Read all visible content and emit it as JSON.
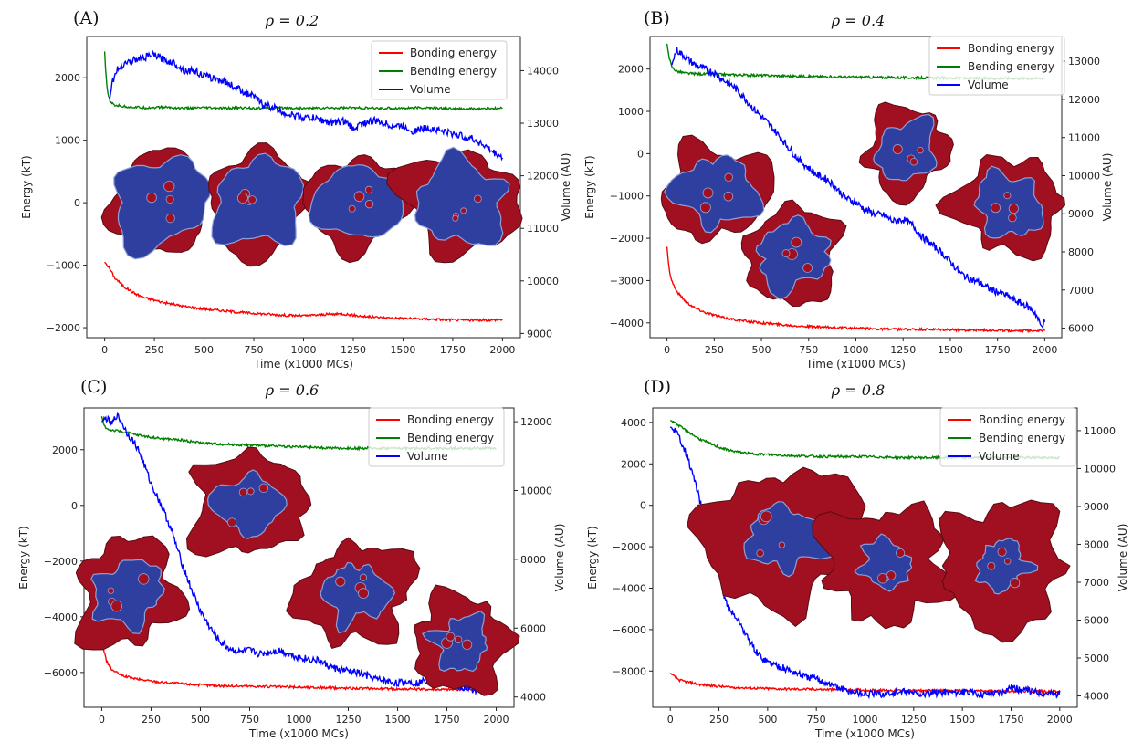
{
  "chart_data": [
    {
      "panel_label": "(A)",
      "title": "ρ = 0.2",
      "type": "line",
      "xlabel": "Time (x1000 MCs)",
      "ylabel": "Energy (kT)",
      "y2label": "Volume (AU)",
      "xlim": [
        -90,
        2090
      ],
      "xticks": [
        0,
        250,
        500,
        750,
        1000,
        1250,
        1500,
        1750,
        2000
      ],
      "ylim": [
        -2160,
        2660
      ],
      "yticks": [
        -2000,
        -1000,
        0,
        1000,
        2000
      ],
      "y2lim": [
        8920,
        14650
      ],
      "y2ticks": [
        9000,
        10000,
        11000,
        12000,
        13000,
        14000
      ],
      "legend": [
        "Bonding energy",
        "Bending energy",
        "Volume"
      ],
      "legend_position": "top-right",
      "series": [
        {
          "name": "Bonding energy",
          "axis": "left",
          "color": "#ff0000",
          "x": [
            0,
            25,
            50,
            100,
            150,
            200,
            300,
            400,
            500,
            600,
            700,
            800,
            900,
            1000,
            1100,
            1200,
            1300,
            1400,
            1500,
            1600,
            1700,
            1800,
            1900,
            2000
          ],
          "y": [
            -950,
            -1050,
            -1200,
            -1350,
            -1450,
            -1520,
            -1600,
            -1660,
            -1700,
            -1730,
            -1760,
            -1780,
            -1800,
            -1810,
            -1790,
            -1780,
            -1820,
            -1840,
            -1850,
            -1860,
            -1870,
            -1880,
            -1880,
            -1870
          ]
        },
        {
          "name": "Bending energy",
          "axis": "left",
          "color": "#008000",
          "x": [
            0,
            5,
            15,
            30,
            50,
            100,
            200,
            300,
            400,
            500,
            600,
            700,
            800,
            900,
            1000,
            1200,
            1400,
            1600,
            1800,
            2000
          ],
          "y": [
            2420,
            2100,
            1750,
            1600,
            1560,
            1540,
            1520,
            1530,
            1510,
            1520,
            1510,
            1520,
            1510,
            1520,
            1510,
            1520,
            1510,
            1520,
            1500,
            1510
          ]
        },
        {
          "name": "Volume",
          "axis": "right",
          "color": "#0000ff",
          "x": [
            25,
            40,
            60,
            100,
            150,
            200,
            250,
            300,
            350,
            400,
            450,
            500,
            550,
            600,
            650,
            700,
            750,
            800,
            850,
            900,
            950,
            1000,
            1050,
            1100,
            1150,
            1200,
            1250,
            1300,
            1350,
            1400,
            1450,
            1500,
            1550,
            1600,
            1650,
            1700,
            1750,
            1800,
            1850,
            1900,
            1950,
            2000
          ],
          "y": [
            13450,
            13800,
            14000,
            14150,
            14200,
            14250,
            14300,
            14200,
            14150,
            14000,
            14000,
            13900,
            13850,
            13800,
            13700,
            13600,
            13500,
            13350,
            13300,
            13200,
            13150,
            13100,
            13100,
            13050,
            13000,
            13050,
            12900,
            13000,
            13050,
            13000,
            12950,
            12950,
            12850,
            12900,
            12900,
            12850,
            12800,
            12750,
            12700,
            12600,
            12450,
            12350
          ]
        }
      ],
      "insets": 4
    },
    {
      "panel_label": "(B)",
      "title": "ρ = 0.4",
      "type": "line",
      "xlabel": "Time (x1000 MCs)",
      "ylabel": "Energy (kT)",
      "y2label": "Volume (AU)",
      "xlim": [
        -90,
        2090
      ],
      "xticks": [
        0,
        250,
        500,
        750,
        1000,
        1250,
        1500,
        1750,
        2000
      ],
      "ylim": [
        -4350,
        2770
      ],
      "yticks": [
        -4000,
        -3000,
        -2000,
        -1000,
        0,
        1000,
        2000
      ],
      "y2lim": [
        5750,
        13650
      ],
      "y2ticks": [
        6000,
        7000,
        8000,
        9000,
        10000,
        11000,
        12000,
        13000
      ],
      "legend": [
        "Bonding energy",
        "Bending energy",
        "Volume"
      ],
      "legend_position": "top-right",
      "series": [
        {
          "name": "Bonding energy",
          "axis": "left",
          "color": "#ff0000",
          "x": [
            0,
            10,
            25,
            50,
            100,
            150,
            200,
            300,
            400,
            500,
            600,
            700,
            800,
            1000,
            1200,
            1400,
            1600,
            1800,
            2000
          ],
          "y": [
            -2200,
            -2700,
            -3000,
            -3250,
            -3500,
            -3650,
            -3750,
            -3880,
            -3950,
            -4000,
            -4040,
            -4070,
            -4100,
            -4130,
            -4150,
            -4160,
            -4170,
            -4180,
            -4180
          ]
        },
        {
          "name": "Bending energy",
          "axis": "left",
          "color": "#008000",
          "x": [
            0,
            10,
            25,
            50,
            100,
            200,
            400,
            600,
            800,
            1000,
            1200,
            1400,
            1600,
            1800,
            2000
          ],
          "y": [
            2600,
            2300,
            2050,
            1950,
            1900,
            1880,
            1860,
            1840,
            1820,
            1810,
            1800,
            1790,
            1780,
            1780,
            1780
          ]
        },
        {
          "name": "Volume",
          "axis": "right",
          "color": "#0000ff",
          "x": [
            25,
            50,
            75,
            100,
            150,
            200,
            250,
            300,
            350,
            400,
            450,
            500,
            550,
            600,
            650,
            700,
            750,
            800,
            850,
            900,
            950,
            1000,
            1050,
            1100,
            1150,
            1200,
            1250,
            1300,
            1350,
            1400,
            1450,
            1500,
            1550,
            1600,
            1650,
            1700,
            1750,
            1800,
            1850,
            1900,
            1950,
            1980,
            2000
          ],
          "y": [
            12900,
            13300,
            13200,
            13100,
            12900,
            12800,
            12700,
            12500,
            12350,
            12100,
            11800,
            11550,
            11300,
            11000,
            10700,
            10400,
            10200,
            10000,
            9900,
            9650,
            9400,
            9300,
            9100,
            9000,
            8950,
            8800,
            8850,
            8700,
            8400,
            8200,
            8000,
            7750,
            7450,
            7300,
            7200,
            7050,
            6950,
            6850,
            6700,
            6600,
            6400,
            6050,
            6200
          ]
        }
      ],
      "insets": 5
    },
    {
      "panel_label": "(C)",
      "title": "ρ = 0.6",
      "type": "line",
      "xlabel": "Time (x1000 MCs)",
      "ylabel": "Energy (kT)",
      "y2label": "Volume (AU)",
      "xlim": [
        -90,
        2090
      ],
      "xticks": [
        0,
        250,
        500,
        750,
        1000,
        1250,
        1500,
        1750,
        2000
      ],
      "ylim": [
        -7250,
        3500
      ],
      "yticks": [
        -6000,
        -4000,
        -2000,
        0,
        2000
      ],
      "y2lim": [
        3700,
        12400
      ],
      "y2ticks": [
        4000,
        6000,
        8000,
        10000,
        12000
      ],
      "legend": [
        "Bonding energy",
        "Bending energy",
        "Volume"
      ],
      "legend_position": "top-right",
      "series": [
        {
          "name": "Bonding energy",
          "axis": "left",
          "color": "#ff0000",
          "x": [
            0,
            10,
            25,
            50,
            100,
            150,
            200,
            300,
            400,
            500,
            600,
            800,
            1000,
            1200,
            1400,
            1600,
            1800,
            2000
          ],
          "y": [
            -4700,
            -5200,
            -5600,
            -5900,
            -6100,
            -6200,
            -6260,
            -6350,
            -6400,
            -6450,
            -6480,
            -6500,
            -6530,
            -6560,
            -6580,
            -6600,
            -6610,
            -6620
          ]
        },
        {
          "name": "Bending energy",
          "axis": "left",
          "color": "#008000",
          "x": [
            0,
            10,
            25,
            50,
            100,
            200,
            300,
            400,
            500,
            600,
            800,
            1000,
            1200,
            1400,
            1600,
            1800,
            2000
          ],
          "y": [
            3200,
            2900,
            2750,
            2700,
            2650,
            2500,
            2400,
            2350,
            2250,
            2200,
            2150,
            2100,
            2050,
            2050,
            2050,
            2050,
            2050
          ]
        },
        {
          "name": "Volume",
          "axis": "right",
          "color": "#0000ff",
          "x": [
            0,
            25,
            50,
            75,
            100,
            125,
            150,
            175,
            200,
            225,
            250,
            300,
            350,
            400,
            450,
            500,
            550,
            600,
            650,
            700,
            750,
            800,
            850,
            900,
            950,
            1000,
            1050,
            1100,
            1150,
            1200,
            1250,
            1300,
            1350,
            1400,
            1450,
            1500,
            1550,
            1600,
            1650,
            1700,
            1750,
            1800,
            1850,
            1900,
            1950,
            2000
          ],
          "y": [
            12000,
            12100,
            11900,
            12200,
            12000,
            11700,
            11500,
            11300,
            11000,
            10600,
            10200,
            9600,
            8900,
            8000,
            7200,
            6500,
            6000,
            5600,
            5400,
            5300,
            5350,
            5250,
            5300,
            5350,
            5250,
            5150,
            5100,
            5050,
            4900,
            4800,
            4750,
            4700,
            4600,
            4500,
            4450,
            4400,
            4450,
            4400,
            4500,
            4350,
            4450,
            4300,
            4250,
            4200,
            4250,
            4250
          ]
        }
      ],
      "insets": 4
    },
    {
      "panel_label": "(D)",
      "title": "ρ = 0.8",
      "type": "line",
      "xlabel": "Time (x1000 MCs)",
      "ylabel": "Energy (kT)",
      "y2label": "Volume (AU)",
      "xlim": [
        -90,
        2090
      ],
      "xticks": [
        0,
        250,
        500,
        750,
        1000,
        1250,
        1500,
        1750,
        2000
      ],
      "ylim": [
        -9750,
        4700
      ],
      "yticks": [
        -8000,
        -6000,
        -4000,
        -2000,
        0,
        2000,
        4000
      ],
      "y2lim": [
        3700,
        11600
      ],
      "y2ticks": [
        4000,
        5000,
        6000,
        7000,
        8000,
        9000,
        10000,
        11000
      ],
      "legend": [
        "Bonding energy",
        "Bending energy",
        "Volume"
      ],
      "legend_position": "top-right",
      "series": [
        {
          "name": "Bonding energy",
          "axis": "left",
          "color": "#ff0000",
          "x": [
            0,
            25,
            50,
            100,
            150,
            200,
            300,
            400,
            500,
            600,
            800,
            1000,
            1200,
            1400,
            1600,
            1800,
            2000
          ],
          "y": [
            -8100,
            -8300,
            -8450,
            -8550,
            -8650,
            -8700,
            -8780,
            -8820,
            -8850,
            -8870,
            -8890,
            -8920,
            -8940,
            -8950,
            -8960,
            -8970,
            -8980
          ]
        },
        {
          "name": "Bending energy",
          "axis": "left",
          "color": "#008000",
          "x": [
            0,
            25,
            50,
            100,
            150,
            200,
            250,
            300,
            400,
            500,
            600,
            800,
            1000,
            1200,
            1400,
            1600,
            1800,
            2000
          ],
          "y": [
            4100,
            4000,
            3800,
            3500,
            3200,
            3000,
            2800,
            2650,
            2500,
            2450,
            2400,
            2350,
            2350,
            2300,
            2300,
            2300,
            2300,
            2300
          ]
        },
        {
          "name": "Volume",
          "axis": "right",
          "color": "#0000ff",
          "x": [
            0,
            25,
            50,
            75,
            100,
            125,
            150,
            175,
            200,
            225,
            250,
            275,
            300,
            350,
            400,
            450,
            500,
            550,
            600,
            650,
            700,
            750,
            800,
            850,
            900,
            950,
            1000,
            1100,
            1200,
            1300,
            1400,
            1500,
            1600,
            1700,
            1750,
            1800,
            1900,
            2000
          ],
          "y": [
            11100,
            11000,
            10800,
            10500,
            10100,
            9700,
            9200,
            8700,
            8200,
            7700,
            7200,
            6700,
            6300,
            6000,
            5500,
            5100,
            4900,
            4800,
            4700,
            4600,
            4500,
            4450,
            4350,
            4250,
            4150,
            4100,
            4050,
            4050,
            4100,
            4050,
            4100,
            4100,
            4050,
            4100,
            4250,
            4150,
            4100,
            4050
          ]
        }
      ],
      "insets": 3
    }
  ]
}
